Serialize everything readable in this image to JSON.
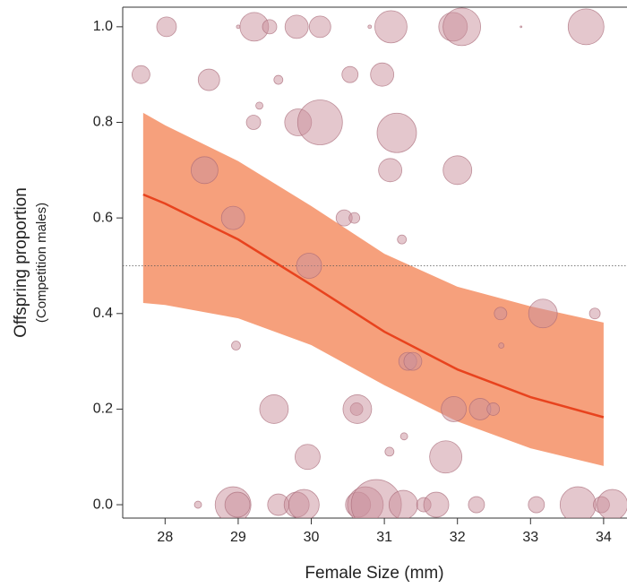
{
  "chart_data": {
    "type": "scatter",
    "x_label": "Female Size (mm)",
    "y_label": "Offspring proportion",
    "y_sublabel": "(Competition males)",
    "xlim": [
      27.42,
      34.32
    ],
    "ylim": [
      -0.028,
      1.041
    ],
    "xticks": [
      28,
      29,
      30,
      31,
      32,
      33,
      34
    ],
    "yticks": [
      {
        "value": 0,
        "label": "0.0"
      },
      {
        "value": 0.2,
        "label": "0.2"
      },
      {
        "value": 0.4,
        "label": "0.4"
      },
      {
        "value": 0.6,
        "label": "0.6"
      },
      {
        "value": 0.8,
        "label": "0.8"
      },
      {
        "value": 1,
        "label": "1.0"
      }
    ],
    "color": "#c98f9c",
    "x": [
      28.02,
      29.0,
      29.22,
      29.43,
      29.8,
      30.12,
      30.8,
      31.09,
      31.94,
      32.06,
      32.87,
      33.76,
      27.67,
      28.6,
      29.55,
      30.53,
      30.97,
      29.29,
      29.21,
      29.82,
      30.12,
      31.17,
      28.54,
      31.08,
      32.0,
      28.93,
      30.45,
      30.59,
      31.24,
      29.97,
      32.59,
      33.17,
      33.88,
      28.97,
      32.6,
      31.32,
      31.39,
      29.49,
      30.62,
      30.63,
      31.95,
      32.31,
      32.49,
      31.27,
      31.07,
      29.95,
      31.84,
      28.45,
      28.93,
      28.99,
      29.55,
      29.8,
      29.9,
      30.64,
      30.74,
      30.89,
      31.26,
      31.54,
      31.71,
      32.26,
      33.08,
      33.65,
      33.97,
      34.12
    ],
    "values": [
      1,
      1,
      1,
      1,
      1,
      1,
      1,
      1,
      1,
      1,
      1,
      1,
      0.9,
      0.889,
      0.889,
      0.9,
      0.9,
      0.835,
      0.8,
      0.8,
      0.8,
      0.778,
      0.7,
      0.7,
      0.7,
      0.6,
      0.6,
      0.6,
      0.555,
      0.5,
      0.4,
      0.4,
      0.4,
      0.333,
      0.333,
      0.3,
      0.3,
      0.2,
      0.2,
      0.2,
      0.2,
      0.2,
      0.2,
      0.143,
      0.111,
      0.1,
      0.1,
      0,
      0,
      0,
      0,
      0,
      0,
      0,
      0,
      0,
      0,
      0,
      0,
      0,
      0,
      0,
      0,
      0
    ],
    "sizes": [
      11,
      2,
      16,
      8,
      13,
      12,
      2,
      18,
      16,
      21,
      1,
      20,
      10,
      12,
      5,
      9,
      13,
      4,
      8,
      15,
      25,
      22,
      15,
      13,
      16,
      13,
      9,
      6,
      5,
      14,
      7,
      16,
      6,
      5,
      3,
      10,
      10,
      16,
      7,
      16,
      14,
      12,
      7,
      4,
      5,
      14,
      18,
      4,
      20,
      14,
      12,
      14,
      17,
      14,
      20,
      28,
      16,
      8,
      14,
      9,
      9,
      20,
      9,
      17
    ],
    "reference_line": 0.5,
    "fit": {
      "x": [
        27.7,
        28,
        29,
        30,
        31,
        32,
        33,
        34
      ],
      "values": [
        0.649,
        0.63,
        0.555,
        0.46,
        0.362,
        0.283,
        0.225,
        0.183
      ],
      "upper": [
        0.82,
        0.794,
        0.719,
        0.625,
        0.525,
        0.456,
        0.415,
        0.381
      ],
      "lower": [
        0.422,
        0.418,
        0.39,
        0.334,
        0.25,
        0.174,
        0.118,
        0.081
      ],
      "color": "#e8431e",
      "band_color": "#f6a07c"
    }
  }
}
